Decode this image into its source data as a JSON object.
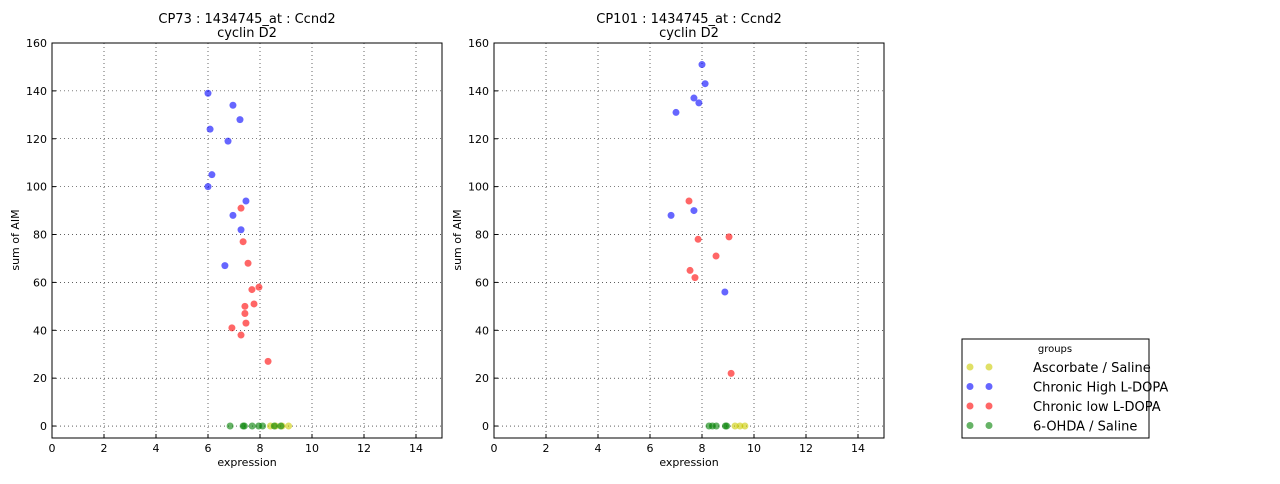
{
  "chart_data": [
    {
      "type": "scatter",
      "title": "CP73 : 1434745_at : Ccnd2",
      "subtitle": "cyclin D2",
      "xlabel": "expression",
      "ylabel": "sum of AIM",
      "xlim": [
        0,
        15
      ],
      "ylim": [
        -5,
        160
      ],
      "xticks": [
        "0",
        "2",
        "4",
        "6",
        "8",
        "10",
        "12",
        "14"
      ],
      "yticks": [
        "0",
        "20",
        "40",
        "60",
        "80",
        "100",
        "120",
        "140",
        "160"
      ],
      "grid": true,
      "series": [
        {
          "name": "Ascorbate / Saline",
          "color": "#cccc00",
          "x": [
            8.4,
            8.6,
            8.85,
            9.1
          ],
          "y": [
            0,
            0,
            0,
            0
          ]
        },
        {
          "name": "Chronic High L-DOPA",
          "color": "#0000ff",
          "x": [
            6.0,
            6.96,
            6.08,
            7.23,
            6.77,
            6.0,
            6.15,
            7.46,
            6.96,
            7.27,
            6.65
          ],
          "y": [
            139,
            134,
            124,
            128,
            119,
            100,
            105,
            94,
            88,
            82,
            67
          ]
        },
        {
          "name": "Chronic low L-DOPA",
          "color": "#ff0000",
          "x": [
            7.27,
            7.35,
            7.54,
            7.96,
            7.69,
            7.42,
            7.77,
            7.42,
            7.46,
            6.92,
            7.27,
            8.31
          ],
          "y": [
            91,
            77,
            68,
            58,
            57,
            50,
            51,
            47,
            43,
            41,
            38,
            27
          ]
        },
        {
          "name": "6-OHDA / Saline",
          "color": "#008000",
          "x": [
            6.85,
            7.35,
            7.4,
            7.7,
            7.95,
            8.1,
            8.55,
            8.8
          ],
          "y": [
            0,
            0,
            0,
            0,
            0,
            0,
            0,
            0
          ]
        }
      ]
    },
    {
      "type": "scatter",
      "title": "CP101 : 1434745_at : Ccnd2",
      "subtitle": "cyclin D2",
      "xlabel": "expression",
      "ylabel": "sum of AIM",
      "xlim": [
        0,
        15
      ],
      "ylim": [
        -5,
        160
      ],
      "xticks": [
        "0",
        "2",
        "4",
        "6",
        "8",
        "10",
        "12",
        "14"
      ],
      "yticks": [
        "0",
        "20",
        "40",
        "60",
        "80",
        "100",
        "120",
        "140",
        "160"
      ],
      "grid": true,
      "series": [
        {
          "name": "Ascorbate / Saline",
          "color": "#cccc00",
          "x": [
            9.27,
            9.46,
            9.65
          ],
          "y": [
            0,
            0,
            0
          ]
        },
        {
          "name": "Chronic High L-DOPA",
          "color": "#0000ff",
          "x": [
            8.0,
            8.12,
            7.69,
            7.88,
            7.0,
            6.81,
            7.69,
            8.88
          ],
          "y": [
            151,
            143,
            137,
            135,
            131,
            88,
            90,
            56
          ]
        },
        {
          "name": "Chronic low L-DOPA",
          "color": "#ff0000",
          "x": [
            7.5,
            7.85,
            9.04,
            8.54,
            7.54,
            7.73,
            9.12
          ],
          "y": [
            94,
            78,
            79,
            71,
            65,
            62,
            22
          ]
        },
        {
          "name": "6-OHDA / Saline",
          "color": "#008000",
          "x": [
            8.27,
            8.4,
            8.55,
            8.9,
            8.95
          ],
          "y": [
            0,
            0,
            0,
            0,
            0
          ]
        }
      ]
    }
  ],
  "legend": {
    "title": "groups",
    "placement": "bottom-right outside",
    "entries": [
      "Ascorbate / Saline",
      "Chronic High L-DOPA",
      "Chronic low L-DOPA",
      "6-OHDA / Saline"
    ]
  }
}
